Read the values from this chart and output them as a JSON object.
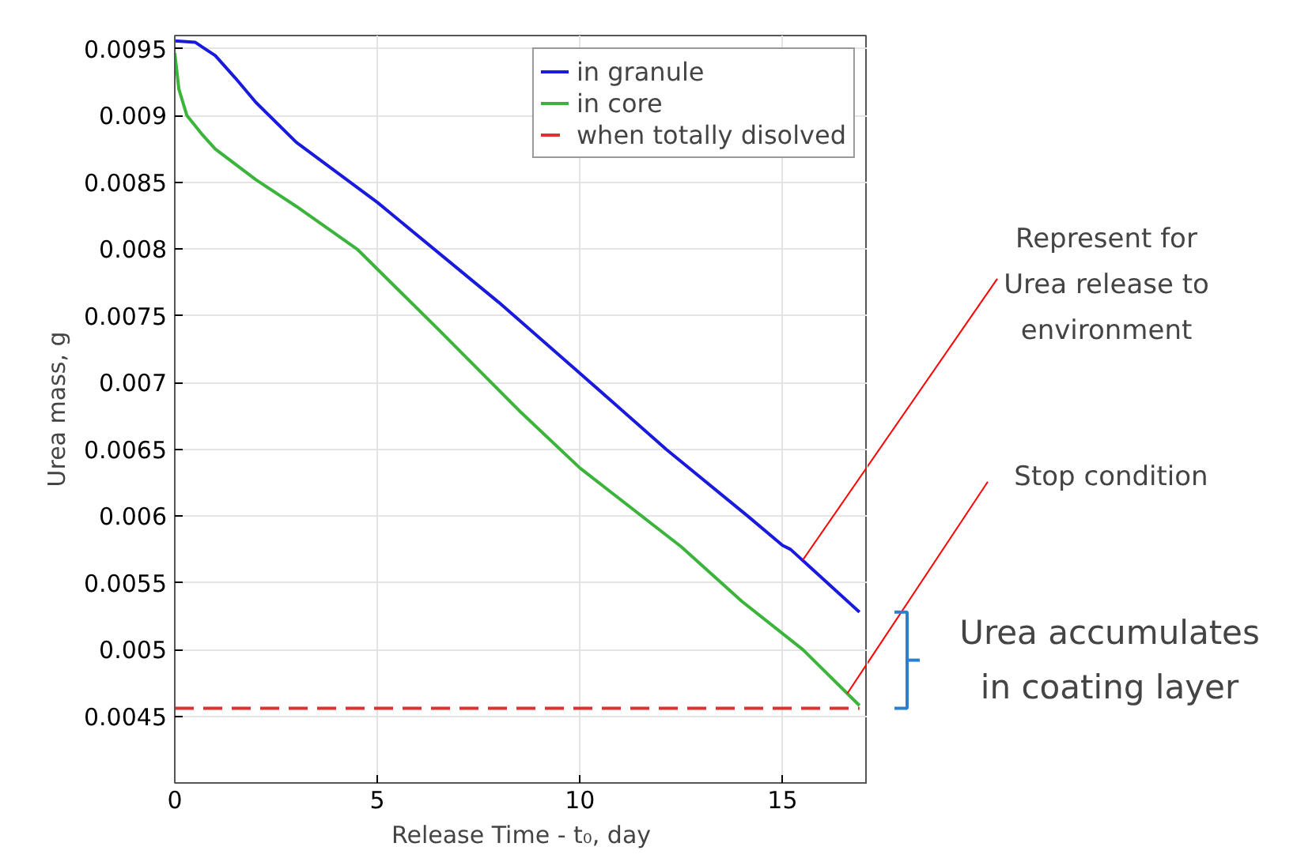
{
  "chart_data": {
    "type": "line",
    "xlabel": "Release Time - t₀, day",
    "ylabel": "Urea mass, g",
    "xlim": [
      0,
      17.1
    ],
    "ylim": [
      0.004,
      0.0096
    ],
    "xticks": [
      0,
      5,
      10,
      15
    ],
    "yticks": [
      0.0045,
      0.005,
      0.0055,
      0.006,
      0.0065,
      0.007,
      0.0075,
      0.008,
      0.0085,
      0.009,
      0.0095
    ],
    "grid": true,
    "legend": "top right",
    "line_style": "solid",
    "series": [
      {
        "name": "in granule",
        "color": "#1a1adc",
        "x": [
          0,
          0.5,
          1,
          1.5,
          2,
          3,
          5,
          8,
          10,
          12.13,
          14.14,
          15,
          15.2,
          16.9
        ],
        "values": [
          0.00956,
          0.00955,
          0.00945,
          0.00928,
          0.0091,
          0.0088,
          0.00835,
          0.0076,
          0.00707,
          0.0065,
          0.006,
          0.00578,
          0.00575,
          0.00528
        ]
      },
      {
        "name": "in core",
        "color": "#3cb43c",
        "x": [
          0,
          0.1,
          0.3,
          0.7,
          1,
          2,
          3,
          4.5,
          6.5,
          8.5,
          10,
          12.5,
          14,
          15.5,
          16.9
        ],
        "values": [
          0.00947,
          0.0092,
          0.009,
          0.00885,
          0.00875,
          0.00852,
          0.00832,
          0.008,
          0.0074,
          0.00679,
          0.00636,
          0.00577,
          0.00536,
          0.005,
          0.00458
        ]
      },
      {
        "name": "when totally disolved",
        "color": "#e03030",
        "line_style": "dashed",
        "x": [
          0,
          16.9
        ],
        "values": [
          0.00456,
          0.00456
        ]
      }
    ],
    "annotations": [
      {
        "text": "Represent for\nUrea release to\nenvironment",
        "x": 15.5,
        "y": 0.00567
      },
      {
        "text": "Stop condition",
        "x": 16.6,
        "y": 0.00467
      },
      "Urea accumulates\nin coating layer"
    ]
  }
}
